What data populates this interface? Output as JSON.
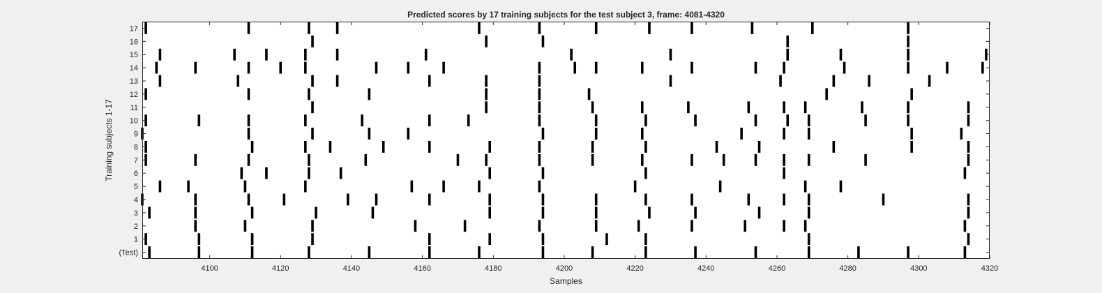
{
  "chart_data": {
    "type": "scatter",
    "title": "Predicted scores by 17 training subjects for the test subject 3, frame: 4081-4320",
    "xlabel": "Samples",
    "ylabel": "Training subjects 1-17",
    "xlim": [
      4081,
      4320
    ],
    "xticks": [
      4100,
      4120,
      4140,
      4160,
      4180,
      4200,
      4220,
      4240,
      4260,
      4280,
      4300,
      4320
    ],
    "ytick_labels": [
      "(Test)",
      "1",
      "2",
      "3",
      "4",
      "5",
      "6",
      "7",
      "8",
      "9",
      "10",
      "11",
      "12",
      "13",
      "14",
      "15",
      "16",
      "17"
    ],
    "grid": false,
    "marker": "vertical black bar",
    "color": "#000000",
    "rows": [
      {
        "label": "(Test)",
        "x": [
          4083,
          4097,
          4112,
          4128,
          4145,
          4162,
          4176,
          4194,
          4208,
          4223,
          4237,
          4254,
          4269,
          4283,
          4297,
          4313
        ]
      },
      {
        "label": "1",
        "x": [
          4082,
          4097,
          4112,
          4129,
          4162,
          4179,
          4194,
          4212,
          4223,
          4269,
          4314
        ]
      },
      {
        "label": "2",
        "x": [
          4096,
          4110,
          4129,
          4158,
          4172,
          4193,
          4209,
          4221,
          4236,
          4251,
          4262,
          4268,
          4313
        ]
      },
      {
        "label": "3",
        "x": [
          4083,
          4096,
          4112,
          4130,
          4146,
          4179,
          4194,
          4209,
          4224,
          4237,
          4255,
          4269,
          4314
        ]
      },
      {
        "label": "4",
        "x": [
          4081,
          4096,
          4111,
          4121,
          4139,
          4147,
          4162,
          4179,
          4194,
          4209,
          4223,
          4236,
          4252,
          4262,
          4269,
          4290,
          4314
        ]
      },
      {
        "label": "5",
        "x": [
          4086,
          4094,
          4110,
          4127,
          4157,
          4166,
          4176,
          4193,
          4220,
          4244,
          4268,
          4278
        ]
      },
      {
        "label": "6",
        "x": [
          4109,
          4116,
          4128,
          4137,
          4179,
          4194,
          4223,
          4262,
          4313
        ]
      },
      {
        "label": "7",
        "x": [
          4082,
          4096,
          4111,
          4128,
          4144,
          4170,
          4178,
          4193,
          4208,
          4222,
          4236,
          4245,
          4254,
          4262,
          4269,
          4285,
          4314
        ]
      },
      {
        "label": "8",
        "x": [
          4082,
          4112,
          4127,
          4134,
          4149,
          4162,
          4179,
          4193,
          4208,
          4223,
          4243,
          4255,
          4276,
          4298,
          4314
        ]
      },
      {
        "label": "9",
        "x": [
          4081,
          4111,
          4129,
          4145,
          4156,
          4194,
          4209,
          4222,
          4250,
          4262,
          4269,
          4298,
          4312
        ]
      },
      {
        "label": "10",
        "x": [
          4082,
          4097,
          4111,
          4127,
          4143,
          4162,
          4173,
          4193,
          4209,
          4223,
          4237,
          4254,
          4263,
          4269,
          4285,
          4297,
          4314
        ]
      },
      {
        "label": "11",
        "x": [
          4129,
          4178,
          4193,
          4208,
          4222,
          4235,
          4252,
          4262,
          4268,
          4284,
          4297,
          4314
        ]
      },
      {
        "label": "12",
        "x": [
          4082,
          4111,
          4128,
          4145,
          4178,
          4193,
          4207,
          4274,
          4298
        ]
      },
      {
        "label": "13",
        "x": [
          4086,
          4108,
          4129,
          4136,
          4162,
          4178,
          4193,
          4230,
          4261,
          4276,
          4286,
          4303
        ]
      },
      {
        "label": "14",
        "x": [
          4085,
          4096,
          4111,
          4120,
          4127,
          4147,
          4156,
          4166,
          4193,
          4203,
          4209,
          4222,
          4236,
          4254,
          4262,
          4279,
          4297,
          4308,
          4318
        ]
      },
      {
        "label": "15",
        "x": [
          4086,
          4107,
          4116,
          4127,
          4136,
          4161,
          4202,
          4230,
          4263,
          4278,
          4297,
          4319
        ]
      },
      {
        "label": "16",
        "x": [
          4129,
          4178,
          4194,
          4263,
          4297
        ]
      },
      {
        "label": "17",
        "x": [
          4082,
          4111,
          4128,
          4136,
          4176,
          4193,
          4209,
          4224,
          4236,
          4253,
          4270,
          4297
        ]
      }
    ]
  }
}
